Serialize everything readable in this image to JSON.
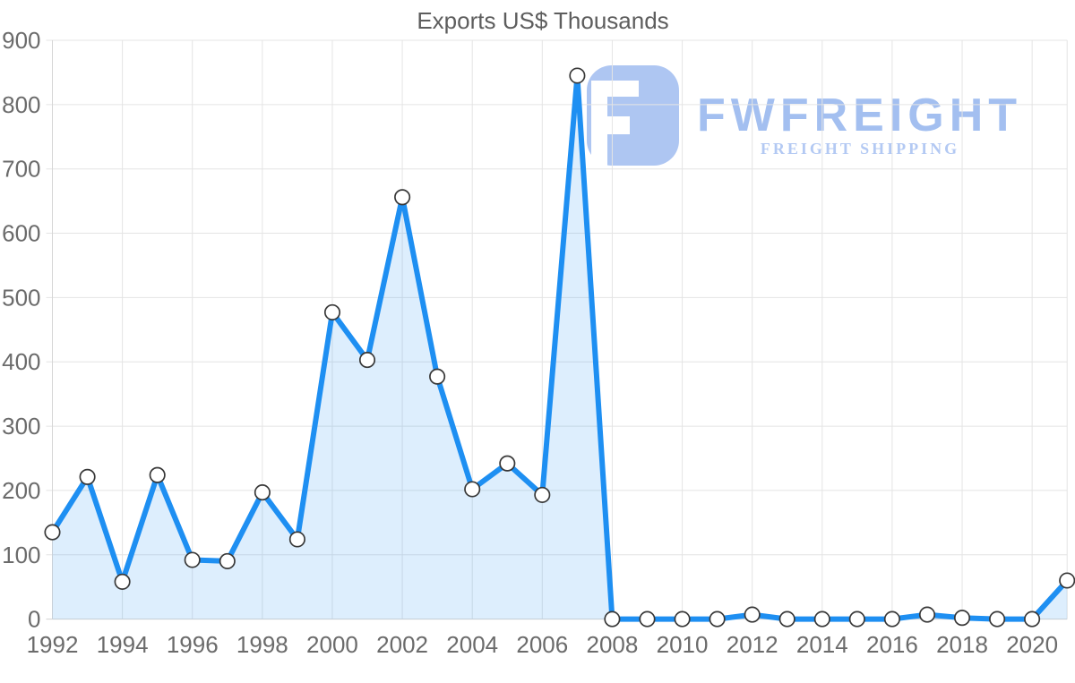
{
  "title": "Exports US$ Thousands",
  "watermark": {
    "brand": "FWFREIGHT",
    "tagline": "FREIGHT SHIPPING"
  },
  "colors": {
    "line": "#1E8FF2",
    "area_fill": "rgba(30,143,242,0.15)",
    "marker_fill": "#ffffff",
    "marker_stroke": "#383838",
    "grid": "#e4e4e4",
    "axis_border": "#d6d6d6",
    "axis_text": "#6b6b6b",
    "title_text": "#5d5d5d",
    "logo_icon": "#aec6f2",
    "logo_text": "#a3bff0",
    "logo_tagline": "#b3c9f3"
  },
  "chart_data": {
    "type": "area",
    "title": "Exports US$ Thousands",
    "xlabel": "",
    "ylabel": "",
    "x": [
      1992,
      1993,
      1994,
      1995,
      1996,
      1997,
      1998,
      1999,
      2000,
      2001,
      2002,
      2003,
      2004,
      2005,
      2006,
      2007,
      2008,
      2009,
      2010,
      2011,
      2012,
      2013,
      2014,
      2015,
      2016,
      2017,
      2018,
      2019,
      2020,
      2021
    ],
    "values": [
      135,
      221,
      58,
      224,
      92,
      90,
      197,
      124,
      477,
      403,
      656,
      377,
      202,
      242,
      193,
      845,
      0,
      0,
      0,
      0,
      7,
      0,
      0,
      0,
      0,
      7,
      2,
      0,
      0,
      60
    ],
    "ylim": [
      0,
      900
    ],
    "y_ticks": [
      0,
      100,
      200,
      300,
      400,
      500,
      600,
      700,
      800,
      900
    ],
    "x_tick_years": [
      1992,
      1994,
      1996,
      1998,
      2000,
      2002,
      2004,
      2006,
      2008,
      2010,
      2012,
      2014,
      2016,
      2018,
      2020
    ],
    "grid": true,
    "legend": false,
    "marker": "circle"
  }
}
